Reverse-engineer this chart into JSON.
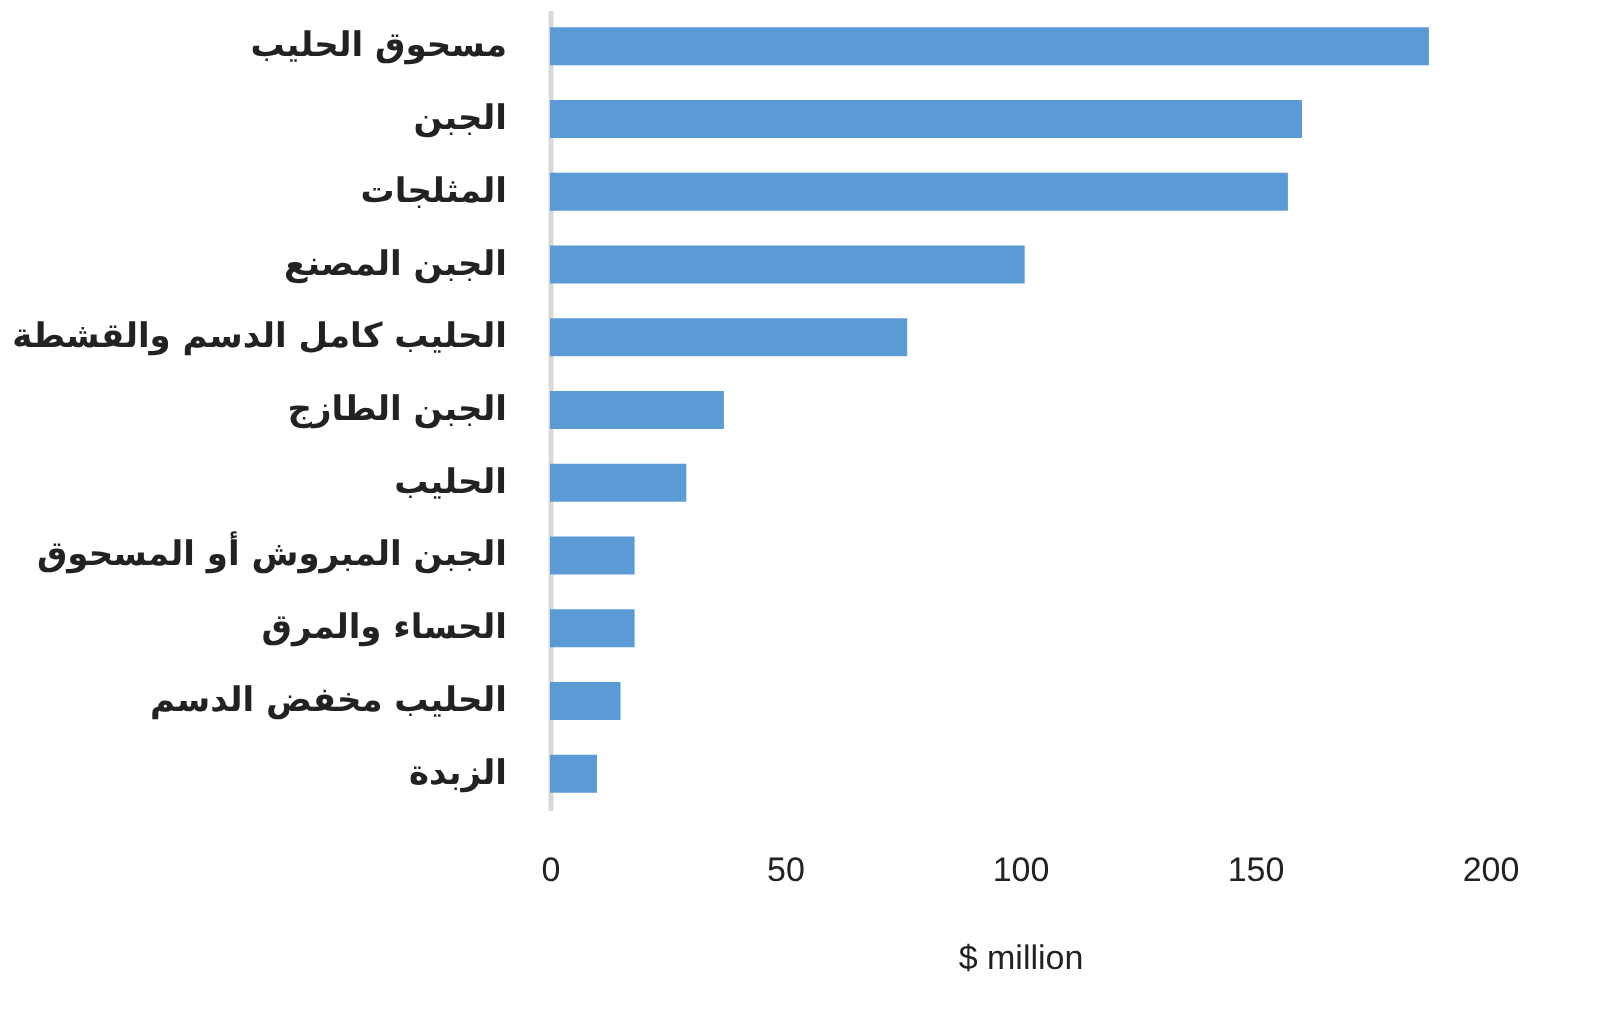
{
  "chart_data": {
    "type": "bar",
    "orientation": "horizontal",
    "xlabel": "$ million",
    "categories": [
      "مسحوق الحليب",
      "الجبن",
      "المثلجات",
      "الجبن المصنع",
      "الحليب كامل الدسم والقشطة",
      "الجبن الطازج",
      "الحليب",
      "الجبن المبروش أو المسحوق",
      "الحساء والمرق",
      "الحليب مخفض الدسم",
      "الزبدة"
    ],
    "values": [
      187,
      160,
      157,
      101,
      76,
      37,
      29,
      18,
      18,
      15,
      10
    ],
    "color": "#5b9bd5",
    "xlim": [
      0,
      200
    ],
    "xticks": [
      0,
      50,
      100,
      150,
      200
    ],
    "grid": false
  }
}
